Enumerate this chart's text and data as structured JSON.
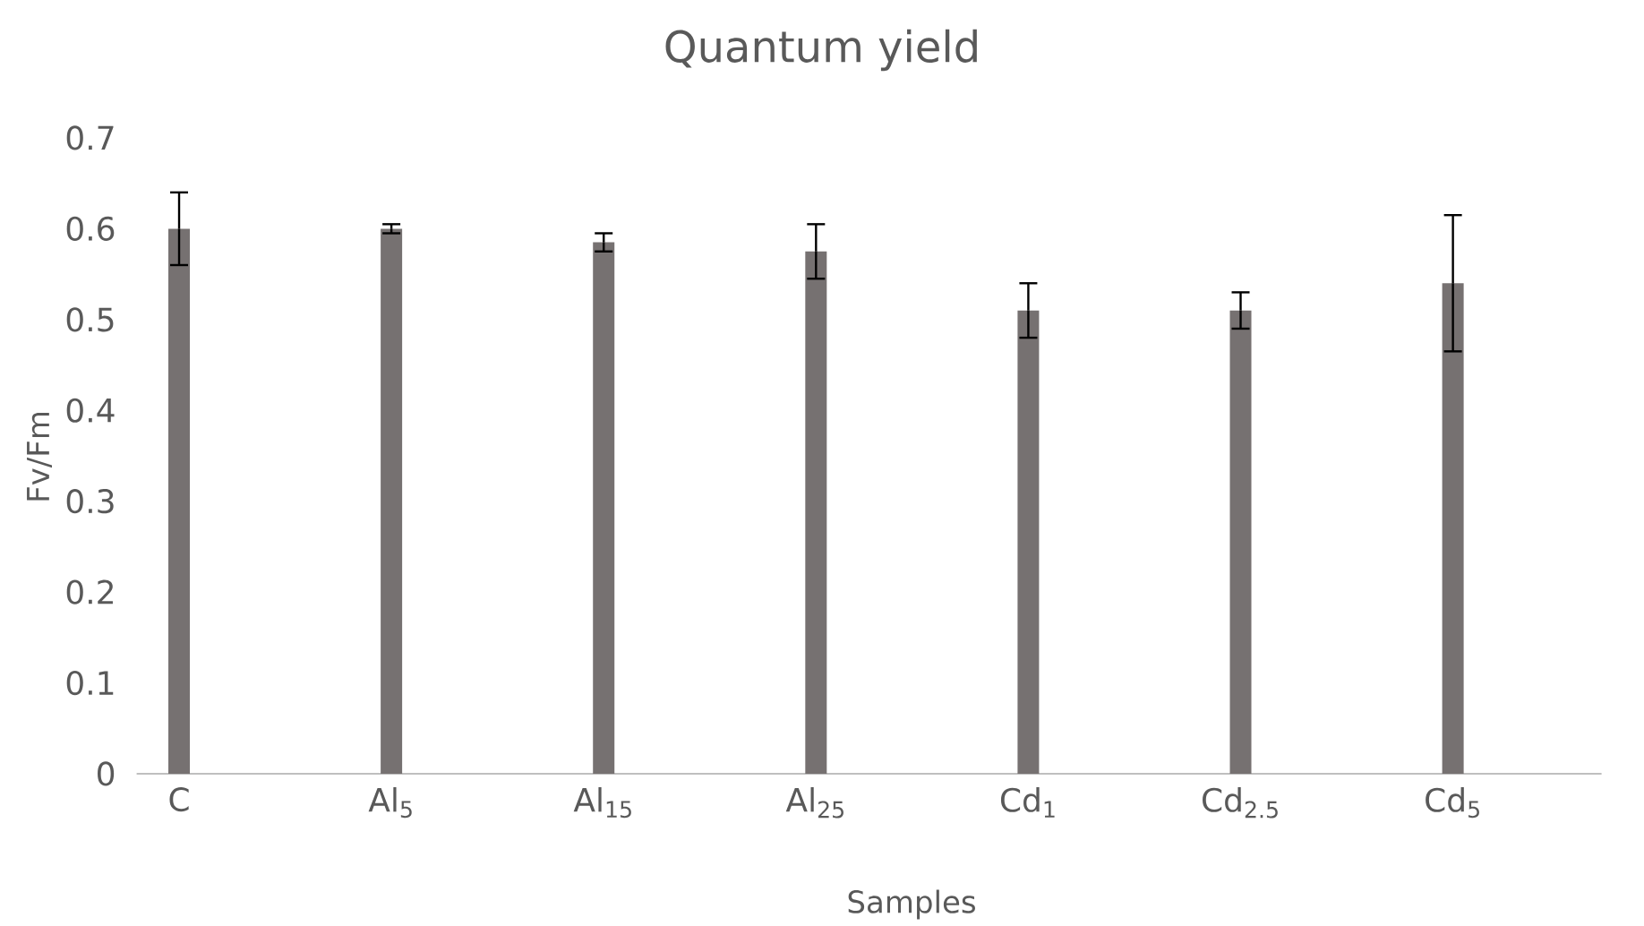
{
  "chart_data": {
    "type": "bar",
    "title": "Quantum yield",
    "xlabel": "Samples",
    "ylabel": "Fv/Fm",
    "categories": [
      "C",
      "Al$_{5}$",
      "Al$_{15}$",
      "Al$_{25}$",
      "Cd$_{1}$",
      "Cd$_{2.5}$",
      "Cd$_{5}$"
    ],
    "values": [
      0.6,
      0.6,
      0.585,
      0.575,
      0.51,
      0.51,
      0.54
    ],
    "errors": [
      0.04,
      0.005,
      0.01,
      0.03,
      0.03,
      0.02,
      0.075
    ],
    "color": "#767171",
    "ylim": [
      0,
      0.7
    ],
    "yticks": [
      0,
      0.1,
      0.2,
      0.3,
      0.4,
      0.5,
      0.6,
      0.7
    ]
  }
}
